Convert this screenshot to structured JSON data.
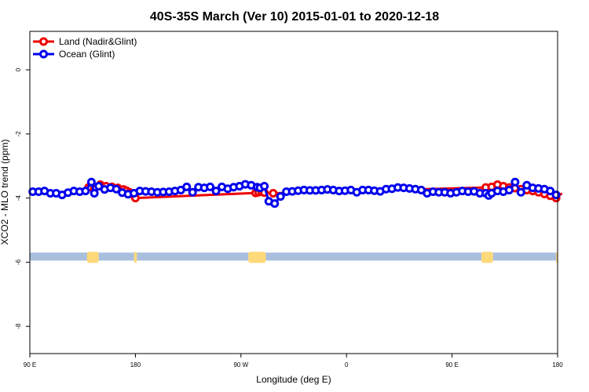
{
  "chart_data": {
    "type": "line",
    "title": "40S-35S March (Ver 10)   2015-01-01 to 2020-12-18",
    "xlabel": "Longitude (deg E)",
    "ylabel": "XCO2 - MLO trend (ppm)",
    "xlim": [
      90,
      450
    ],
    "ylim": [
      -8.85,
      1.2
    ],
    "x_ticks": [
      {
        "value": 90,
        "label": "90 E"
      },
      {
        "value": 162,
        "label": "180"
      },
      {
        "value": 234,
        "label": "90 W"
      },
      {
        "value": 306,
        "label": "0"
      },
      {
        "value": 378,
        "label": "90 E"
      },
      {
        "value": 450,
        "label": "180"
      }
    ],
    "y_ticks": [
      {
        "value": 0,
        "label": "0"
      },
      {
        "value": -2,
        "label": "-2"
      },
      {
        "value": -4,
        "label": "-4"
      },
      {
        "value": -6,
        "label": "-6"
      },
      {
        "value": -8,
        "label": "-8"
      }
    ],
    "grid": false,
    "legend": "top-left",
    "land_band": {
      "ymin": -5.95,
      "ymax": -5.7,
      "ocean_color": "#a9bfdd",
      "land_color": "#fdd97a",
      "land_spans": [
        [
          129,
          137
        ],
        [
          161,
          163
        ],
        [
          239,
          251
        ],
        [
          398,
          406
        ],
        [
          449,
          450
        ]
      ]
    },
    "series": [
      {
        "name": "Land (Nadir&Glint)",
        "color": "#ee0000",
        "x": [
          130,
          134,
          138,
          142,
          146,
          150,
          154,
          156,
          158,
          160,
          162,
          244,
          246,
          248,
          250,
          256,
          401,
          405,
          409,
          413,
          417,
          421,
          425,
          429,
          433,
          437,
          441,
          445,
          449,
          453
        ],
        "values": [
          -3.67,
          -3.72,
          -3.58,
          -3.63,
          -3.65,
          -3.68,
          -3.73,
          -3.77,
          -3.82,
          -3.88,
          -4.0,
          -3.84,
          -3.82,
          -3.8,
          -3.83,
          -3.85,
          -3.67,
          -3.65,
          -3.58,
          -3.63,
          -3.67,
          -3.69,
          -3.72,
          -3.75,
          -3.78,
          -3.82,
          -3.87,
          -3.93,
          -4.0,
          -3.85
        ]
      },
      {
        "name": "Ocean (Glint)",
        "color": "#0000ee",
        "x": [
          92,
          96,
          100,
          104,
          108,
          112,
          116,
          120,
          124,
          128,
          132,
          134,
          137,
          141,
          145,
          149,
          153,
          157,
          161,
          165,
          169,
          173,
          177,
          181,
          185,
          189,
          193,
          197,
          201,
          205,
          209,
          213,
          217,
          221,
          225,
          229,
          233,
          237,
          241,
          245,
          247,
          250,
          253,
          257,
          261,
          265,
          269,
          273,
          277,
          281,
          285,
          289,
          293,
          297,
          301,
          305,
          309,
          313,
          317,
          321,
          325,
          329,
          333,
          337,
          341,
          345,
          349,
          353,
          357,
          361,
          365,
          369,
          373,
          377,
          381,
          385,
          389,
          393,
          397,
          401,
          403,
          405,
          409,
          413,
          417,
          421,
          425,
          429,
          433,
          437,
          441,
          445,
          449
        ],
        "values": [
          -3.8,
          -3.8,
          -3.78,
          -3.85,
          -3.85,
          -3.9,
          -3.83,
          -3.78,
          -3.8,
          -3.78,
          -3.5,
          -3.85,
          -3.63,
          -3.73,
          -3.68,
          -3.72,
          -3.83,
          -3.88,
          -3.85,
          -3.78,
          -3.79,
          -3.8,
          -3.82,
          -3.81,
          -3.8,
          -3.78,
          -3.75,
          -3.65,
          -3.82,
          -3.66,
          -3.68,
          -3.65,
          -3.78,
          -3.65,
          -3.71,
          -3.66,
          -3.63,
          -3.57,
          -3.6,
          -3.66,
          -3.68,
          -3.63,
          -4.1,
          -4.17,
          -3.95,
          -3.8,
          -3.79,
          -3.77,
          -3.75,
          -3.76,
          -3.76,
          -3.75,
          -3.73,
          -3.75,
          -3.78,
          -3.77,
          -3.75,
          -3.82,
          -3.75,
          -3.75,
          -3.77,
          -3.79,
          -3.72,
          -3.71,
          -3.67,
          -3.68,
          -3.7,
          -3.72,
          -3.75,
          -3.85,
          -3.8,
          -3.82,
          -3.82,
          -3.85,
          -3.82,
          -3.78,
          -3.8,
          -3.79,
          -3.85,
          -3.85,
          -3.92,
          -3.85,
          -3.78,
          -3.8,
          -3.75,
          -3.5,
          -3.82,
          -3.6,
          -3.68,
          -3.7,
          -3.72,
          -3.78,
          -3.9
        ]
      }
    ]
  }
}
